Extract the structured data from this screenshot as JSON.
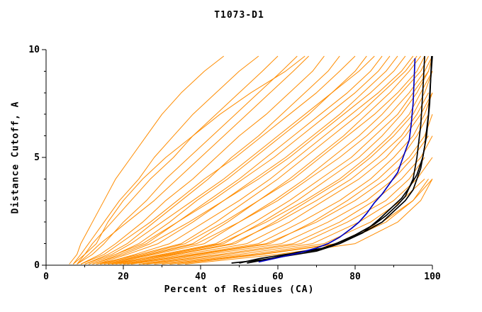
{
  "chart_data": {
    "type": "line",
    "title": "T1073-D1",
    "xlabel": "Percent of Residues (CA)",
    "ylabel": "Distance Cutoff, A",
    "xlim": [
      0,
      100
    ],
    "ylim": [
      0,
      10
    ],
    "x_major_ticks": [
      0,
      20,
      40,
      60,
      80,
      100
    ],
    "x_minor_ticks": [
      10,
      30,
      50,
      70,
      90
    ],
    "y_major_ticks": [
      0,
      5,
      10
    ],
    "y_minor_ticks": [
      1,
      2,
      3,
      4,
      6,
      7,
      8,
      9
    ],
    "grid": false,
    "legend": "none",
    "colors": {
      "model_lines": "#FF8C00",
      "highlight_line": "#0000C0",
      "reference_lines": "#000000",
      "axis": "#000000",
      "background": "#FFFFFF"
    },
    "y_grid": [
      0.05,
      0.5,
      1,
      2,
      3,
      4,
      5,
      6,
      7,
      8,
      9,
      9.7
    ],
    "series": {
      "orange_x_at_y_grid": [
        [
          6,
          8,
          9,
          12,
          15,
          18,
          22,
          26,
          30,
          35,
          41,
          46
        ],
        [
          7,
          9,
          11,
          15,
          19,
          24,
          28,
          33,
          38,
          44,
          50,
          55
        ],
        [
          7,
          10,
          12,
          17,
          22,
          27,
          33,
          38,
          44,
          50,
          56,
          60
        ],
        [
          8,
          12,
          15,
          20,
          26,
          31,
          37,
          43,
          49,
          55,
          61,
          65
        ],
        [
          8,
          11,
          14,
          21,
          28,
          34,
          40,
          46,
          52,
          58,
          64,
          68
        ],
        [
          9,
          14,
          18,
          25,
          31,
          38,
          44,
          50,
          57,
          63,
          69,
          72
        ],
        [
          10,
          16,
          21,
          28,
          35,
          42,
          48,
          55,
          61,
          67,
          73,
          76
        ],
        [
          9,
          15,
          19,
          27,
          34,
          41,
          49,
          56,
          63,
          70,
          76,
          80
        ],
        [
          11,
          18,
          24,
          32,
          39,
          47,
          54,
          61,
          68,
          74,
          80,
          83
        ],
        [
          10,
          17,
          22,
          30,
          38,
          46,
          53,
          60,
          67,
          74,
          81,
          85
        ],
        [
          12,
          19,
          26,
          34,
          42,
          50,
          57,
          64,
          71,
          78,
          84,
          87
        ],
        [
          11,
          18,
          25,
          34,
          43,
          51,
          59,
          66,
          73,
          80,
          86,
          89
        ],
        [
          13,
          21,
          29,
          38,
          46,
          54,
          62,
          69,
          76,
          82,
          88,
          91
        ],
        [
          12,
          20,
          27,
          37,
          46,
          55,
          63,
          70,
          77,
          84,
          90,
          93
        ],
        [
          14,
          23,
          32,
          41,
          50,
          58,
          65,
          72,
          79,
          86,
          92,
          95
        ],
        [
          13,
          24,
          35,
          44,
          52,
          60,
          67,
          74,
          81,
          87,
          93,
          96
        ],
        [
          15,
          26,
          38,
          47,
          55,
          63,
          70,
          77,
          83,
          89,
          94,
          97
        ],
        [
          14,
          25,
          36,
          46,
          55,
          64,
          71,
          78,
          85,
          91,
          96,
          98
        ],
        [
          16,
          28,
          41,
          50,
          59,
          67,
          74,
          81,
          87,
          92,
          97,
          99
        ],
        [
          15,
          27,
          39,
          50,
          60,
          68,
          76,
          83,
          89,
          94,
          98,
          100
        ],
        [
          17,
          30,
          44,
          54,
          63,
          71,
          79,
          85,
          91,
          95,
          99,
          100
        ],
        [
          18,
          32,
          46,
          56,
          65,
          73,
          81,
          87,
          92,
          96,
          99
        ],
        [
          16,
          31,
          45,
          57,
          67,
          76,
          83,
          89,
          94,
          97,
          100
        ],
        [
          19,
          34,
          49,
          59,
          68,
          77,
          84,
          90,
          95,
          98,
          100
        ],
        [
          17,
          33,
          48,
          60,
          70,
          79,
          86,
          92,
          96,
          99
        ],
        [
          20,
          36,
          52,
          63,
          72,
          81,
          88,
          93,
          97,
          100
        ],
        [
          21,
          38,
          55,
          66,
          76,
          84,
          90,
          95,
          98,
          100
        ],
        [
          22,
          40,
          58,
          69,
          78,
          86,
          92,
          96,
          99
        ],
        [
          20,
          39,
          57,
          70,
          80,
          88,
          94,
          98,
          100
        ],
        [
          24,
          42,
          61,
          73,
          83,
          90,
          95,
          99
        ],
        [
          25,
          45,
          64,
          76,
          85,
          92,
          97,
          100
        ],
        [
          26,
          47,
          66,
          78,
          88,
          94,
          98
        ],
        [
          28,
          50,
          69,
          81,
          90,
          96,
          100
        ],
        [
          30,
          53,
          72,
          84,
          92,
          98
        ],
        [
          32,
          55,
          75,
          87,
          95,
          100
        ],
        [
          8,
          10,
          13,
          16,
          20,
          25,
          31,
          38,
          45,
          53,
          62,
          67
        ],
        [
          34,
          56,
          76,
          88,
          95,
          99
        ],
        [
          36,
          60,
          80,
          91,
          97,
          100
        ]
      ],
      "black_points": [
        [
          [
            50,
            0.1
          ],
          [
            55,
            0.3
          ],
          [
            62,
            0.5
          ],
          [
            70,
            0.7
          ],
          [
            75,
            1.0
          ],
          [
            80,
            1.4
          ],
          [
            85,
            1.9
          ],
          [
            88,
            2.3
          ],
          [
            91,
            2.8
          ],
          [
            93,
            3.2
          ],
          [
            95,
            4.0
          ],
          [
            96,
            5.0
          ],
          [
            97,
            6.5
          ],
          [
            97.5,
            8.0
          ],
          [
            98,
            9.7
          ]
        ],
        [
          [
            52,
            0.1
          ],
          [
            58,
            0.3
          ],
          [
            65,
            0.6
          ],
          [
            72,
            0.8
          ],
          [
            78,
            1.2
          ],
          [
            83,
            1.6
          ],
          [
            87,
            2.0
          ],
          [
            90,
            2.5
          ],
          [
            93,
            3.0
          ],
          [
            95,
            3.5
          ],
          [
            97,
            4.5
          ],
          [
            98,
            5.5
          ],
          [
            99,
            7.0
          ],
          [
            99.5,
            8.5
          ],
          [
            100,
            9.7
          ]
        ],
        [
          [
            48,
            0.1
          ],
          [
            56,
            0.25
          ],
          [
            63,
            0.45
          ],
          [
            70,
            0.65
          ],
          [
            76,
            1.0
          ],
          [
            82,
            1.5
          ],
          [
            86,
            2.1
          ],
          [
            89,
            2.6
          ],
          [
            92,
            3.1
          ],
          [
            94,
            3.6
          ],
          [
            96,
            4.2
          ],
          [
            97.5,
            5.0
          ],
          [
            98.5,
            6.0
          ],
          [
            99.3,
            7.5
          ],
          [
            99.8,
            9.7
          ]
        ]
      ],
      "blue_points": [
        [
          55,
          0.15
        ],
        [
          60,
          0.35
        ],
        [
          65,
          0.55
        ],
        [
          70,
          0.8
        ],
        [
          73,
          1.0
        ],
        [
          76,
          1.3
        ],
        [
          79,
          1.7
        ],
        [
          81,
          2.0
        ],
        [
          83,
          2.4
        ],
        [
          85,
          2.9
        ],
        [
          87,
          3.3
        ],
        [
          89,
          3.8
        ],
        [
          91,
          4.3
        ],
        [
          92,
          4.8
        ],
        [
          93,
          5.3
        ],
        [
          94,
          5.8
        ],
        [
          94.5,
          6.5
        ],
        [
          95,
          7.5
        ],
        [
          95.5,
          9.6
        ]
      ]
    }
  }
}
